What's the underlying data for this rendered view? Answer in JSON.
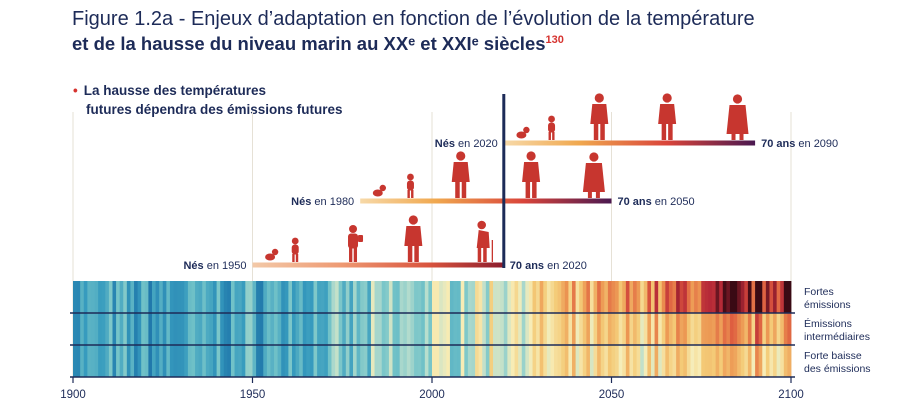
{
  "figure": {
    "title_line1": "Figure 1.2a - Enjeux d’adaptation en fonction de l’évolution de la température",
    "title_line2": "et de la hausse du niveau marin au XXᵉ et XXIᵉ siècles",
    "title_ref": "130",
    "subtitle_line1": "La hausse des températures",
    "subtitle_line2": "futures dépendra des émissions futures"
  },
  "chart_data": {
    "type": "heatmap",
    "title": "Figure 1.2a - Enjeux d’adaptation en fonction de l’évolution de la température et de la hausse du niveau marin au XXᵉ et XXIᵉ siècles",
    "subtitle": "La hausse des températures futures dépendra des émissions futures",
    "x_range": [
      1900,
      2100
    ],
    "x_ticks": [
      "1900",
      "1950",
      "2000",
      "2050",
      "2100"
    ],
    "today_year": 2020,
    "colors": {
      "accent_red": "#c7362f",
      "navy": "#1d2b58",
      "stripe_coldest": "#1f7fb0",
      "stripe_neutral": "#f7edb8",
      "stripe_hottest": "#3a0a14"
    },
    "scenarios": [
      {
        "name_line1": "Fortes",
        "name_line2": "émissions",
        "warming_level_2100": 1.0
      },
      {
        "name_line1": "Émissions",
        "name_line2": "intermédiaires",
        "warming_level_2100": 0.58
      },
      {
        "name_line1": "Forte baisse",
        "name_line2": "des émissions",
        "warming_level_2100": 0.36
      }
    ],
    "generations": [
      {
        "born_label": "Nés",
        "born_suffix": " en 1950",
        "born_year": 1950,
        "age_label": "70 ans",
        "age_suffix": " en 2020",
        "age_year": 2020
      },
      {
        "born_label": "Nés",
        "born_suffix": " en 1980",
        "born_year": 1980,
        "age_label": "70 ans",
        "age_suffix": " en 2050",
        "age_year": 2050
      },
      {
        "born_label": "Nés",
        "born_suffix": " en 2020",
        "born_year": 2020,
        "age_label": "70 ans",
        "age_suffix": " en 2090",
        "age_year": 2090
      }
    ]
  }
}
